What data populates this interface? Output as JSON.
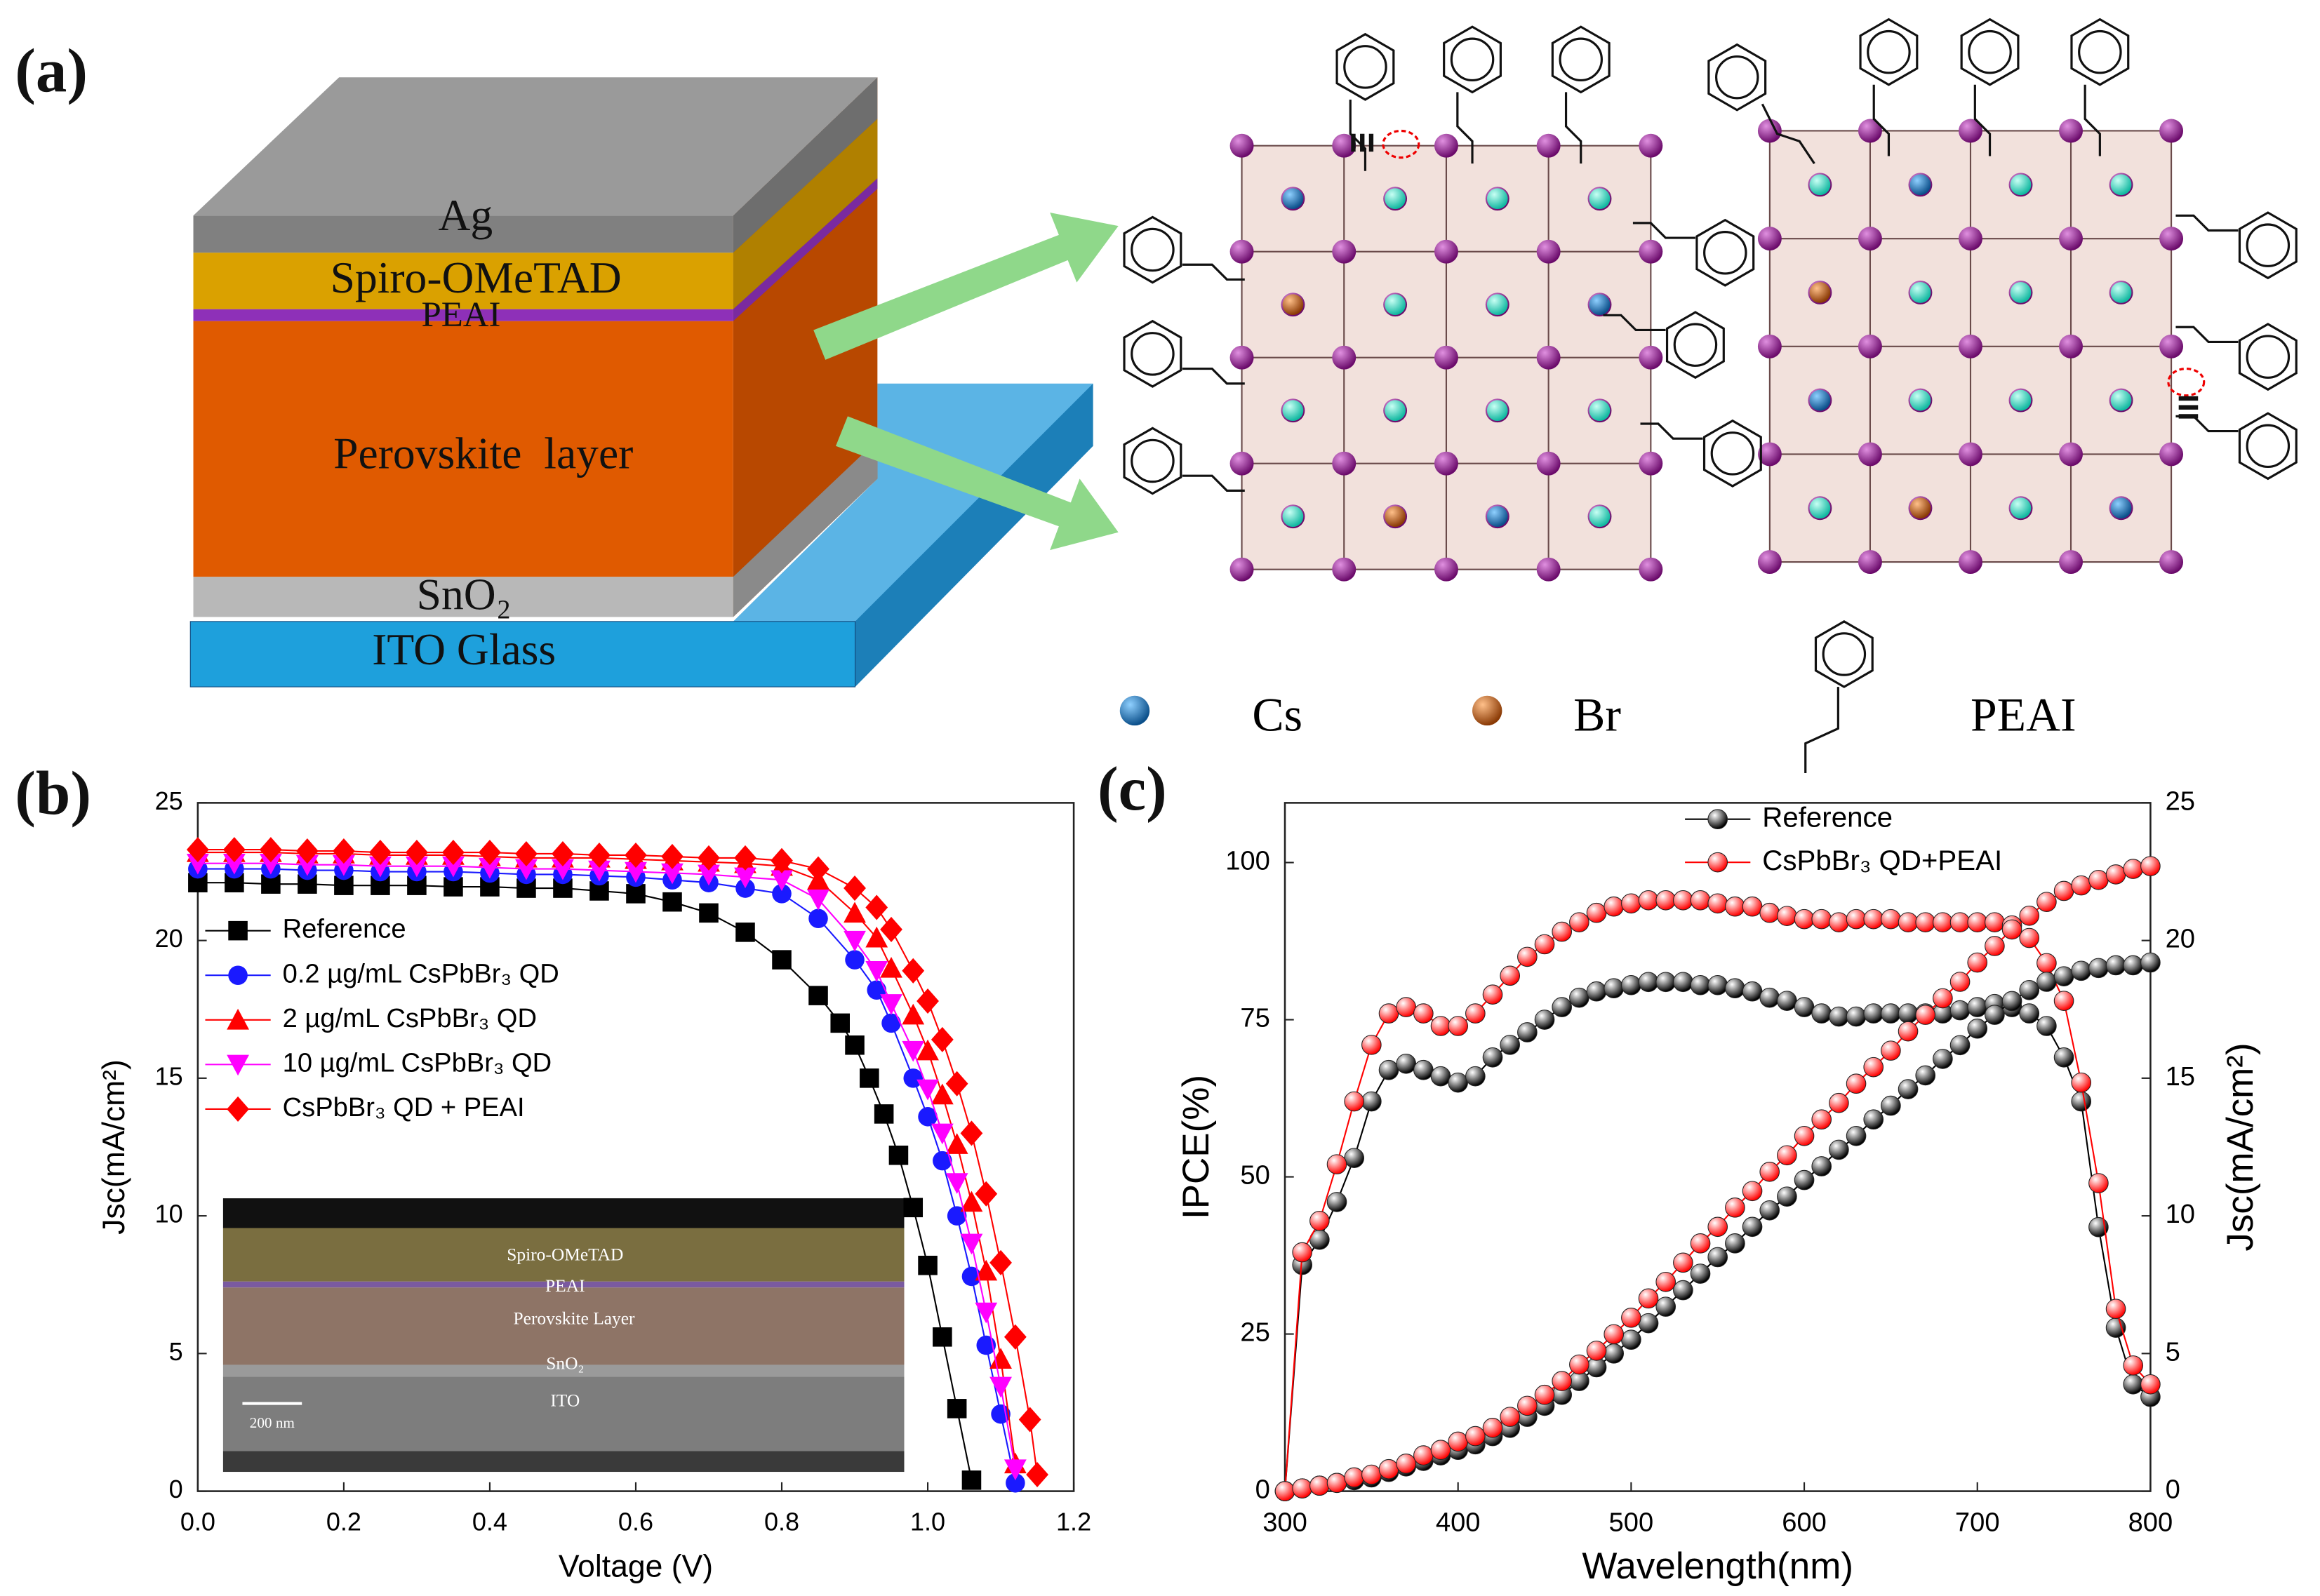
{
  "panel_labels": [
    "(a)",
    "(b)",
    "(c)"
  ],
  "device_layers": {
    "ag": "Ag",
    "spiro": "Spiro-OMeTAD",
    "peai": "PEAI",
    "perovskite": "Perovskite  layer",
    "sno2": "SnO₂",
    "ito": "ITO Glass"
  },
  "crystal_legend": {
    "cs": "Cs",
    "br": "Br",
    "peai": "PEAI"
  },
  "chart_data": [
    {
      "type": "line",
      "x_label": "Voltage (V)",
      "y_label": "Jsc(mA/cm²)",
      "xlim": [
        0,
        1.2
      ],
      "xticks": [
        {
          "value": 0,
          "label": "0.0"
        },
        0.2,
        0.4,
        0.6,
        0.8,
        {
          "value": 1,
          "label": "1.0"
        },
        1.2
      ],
      "ylim": [
        0,
        25
      ],
      "yticks": [
        0,
        5,
        10,
        15,
        20,
        25
      ],
      "inset_labels": [
        "Spiro-OMeTAD",
        "PEAI",
        "Perovskite Layer",
        "SnO₂",
        "ITO",
        "200 nm"
      ],
      "series": [
        {
          "name": "Reference",
          "color": "#000000",
          "marker": "square",
          "x": [
            0,
            0.05,
            0.1,
            0.15,
            0.2,
            0.25,
            0.3,
            0.35,
            0.4,
            0.45,
            0.5,
            0.55,
            0.6,
            0.65,
            0.7,
            0.75,
            0.8,
            0.85,
            0.88,
            0.9,
            0.92,
            0.94,
            0.96,
            0.98,
            1.0,
            1.02,
            1.04,
            1.06
          ],
          "values": [
            22.1,
            22.1,
            22.05,
            22.05,
            22.0,
            22.0,
            22.0,
            21.95,
            21.95,
            21.9,
            21.9,
            21.8,
            21.7,
            21.4,
            21.0,
            20.3,
            19.3,
            18.0,
            17.0,
            16.2,
            15.0,
            13.7,
            12.2,
            10.3,
            8.2,
            5.6,
            3.0,
            0.4
          ]
        },
        {
          "name": "0.2 µg/mL CsPbBr₃ QD",
          "color": "#1a1aff",
          "marker": "circle",
          "x": [
            0,
            0.05,
            0.1,
            0.15,
            0.2,
            0.25,
            0.3,
            0.35,
            0.4,
            0.45,
            0.5,
            0.55,
            0.6,
            0.65,
            0.7,
            0.75,
            0.8,
            0.85,
            0.9,
            0.93,
            0.95,
            0.98,
            1.0,
            1.02,
            1.04,
            1.06,
            1.08,
            1.1,
            1.12
          ],
          "values": [
            22.6,
            22.6,
            22.6,
            22.55,
            22.55,
            22.5,
            22.5,
            22.5,
            22.45,
            22.4,
            22.4,
            22.35,
            22.3,
            22.2,
            22.1,
            21.9,
            21.7,
            20.8,
            19.3,
            18.2,
            17.0,
            15.0,
            13.6,
            12.0,
            10.0,
            7.8,
            5.3,
            2.8,
            0.3
          ]
        },
        {
          "name": "2 µg/mL CsPbBr₃ QD",
          "color": "#ff0000",
          "marker": "triangle",
          "x": [
            0,
            0.05,
            0.1,
            0.15,
            0.2,
            0.25,
            0.3,
            0.35,
            0.4,
            0.45,
            0.5,
            0.55,
            0.6,
            0.65,
            0.7,
            0.75,
            0.8,
            0.85,
            0.9,
            0.93,
            0.95,
            0.98,
            1.0,
            1.02,
            1.04,
            1.06,
            1.08,
            1.1,
            1.12
          ],
          "values": [
            23.2,
            23.2,
            23.2,
            23.15,
            23.15,
            23.1,
            23.1,
            23.1,
            23.05,
            23.0,
            23.0,
            23.0,
            22.95,
            22.9,
            22.85,
            22.8,
            22.7,
            22.2,
            21.0,
            20.1,
            19.0,
            17.3,
            16.0,
            14.4,
            12.6,
            10.5,
            8.0,
            4.8,
            1.0
          ]
        },
        {
          "name": "10 µg/mL CsPbBr₃ QD",
          "color": "#ff00ff",
          "marker": "tridown",
          "x": [
            0,
            0.05,
            0.1,
            0.15,
            0.2,
            0.25,
            0.3,
            0.35,
            0.4,
            0.45,
            0.5,
            0.55,
            0.6,
            0.65,
            0.7,
            0.75,
            0.8,
            0.85,
            0.9,
            0.93,
            0.95,
            0.98,
            1.0,
            1.02,
            1.04,
            1.06,
            1.08,
            1.1,
            1.12
          ],
          "values": [
            22.8,
            22.8,
            22.8,
            22.75,
            22.75,
            22.7,
            22.7,
            22.7,
            22.65,
            22.6,
            22.6,
            22.55,
            22.5,
            22.45,
            22.4,
            22.3,
            22.2,
            21.5,
            20.0,
            18.9,
            17.7,
            16.0,
            14.6,
            13.0,
            11.2,
            9.0,
            6.5,
            3.8,
            0.8
          ]
        },
        {
          "name": "CsPbBr₃ QD + PEAI",
          "color": "#ff0000",
          "marker": "diamond",
          "x": [
            0,
            0.05,
            0.1,
            0.15,
            0.2,
            0.25,
            0.3,
            0.35,
            0.4,
            0.45,
            0.5,
            0.55,
            0.6,
            0.65,
            0.7,
            0.75,
            0.8,
            0.85,
            0.9,
            0.93,
            0.95,
            0.98,
            1.0,
            1.02,
            1.04,
            1.06,
            1.08,
            1.1,
            1.12,
            1.14,
            1.15
          ],
          "values": [
            23.3,
            23.3,
            23.3,
            23.25,
            23.25,
            23.2,
            23.2,
            23.2,
            23.2,
            23.15,
            23.15,
            23.1,
            23.1,
            23.05,
            23.0,
            23.0,
            22.9,
            22.6,
            21.9,
            21.2,
            20.4,
            18.9,
            17.8,
            16.4,
            14.8,
            13.0,
            10.8,
            8.3,
            5.6,
            2.6,
            0.6
          ]
        }
      ]
    },
    {
      "type": "line",
      "x_label": "Wavelength(nm)",
      "y_label": "IPCE(%)",
      "y2_label": "Jsc(mA/cm²)",
      "xlim": [
        300,
        800
      ],
      "xticks": [
        300,
        400,
        500,
        600,
        700,
        800
      ],
      "ylim": [
        0,
        109.5
      ],
      "yticks": [
        0,
        25,
        50,
        75,
        100
      ],
      "y2lim": [
        0,
        25
      ],
      "y2ticks": [
        0,
        5,
        10,
        15,
        20,
        25
      ],
      "x": [
        300,
        310,
        320,
        330,
        340,
        350,
        360,
        370,
        380,
        390,
        400,
        410,
        420,
        430,
        440,
        450,
        460,
        470,
        480,
        490,
        500,
        510,
        520,
        530,
        540,
        550,
        560,
        570,
        580,
        590,
        600,
        610,
        620,
        630,
        640,
        650,
        660,
        670,
        680,
        690,
        700,
        710,
        720,
        730,
        740,
        750,
        760,
        770,
        780,
        790,
        800
      ],
      "series": [
        {
          "name": "Reference",
          "color": "#000000",
          "values": [
            0,
            36,
            40,
            46,
            53,
            62,
            67,
            68,
            67,
            66,
            65,
            66,
            69,
            71,
            73,
            75,
            77,
            78.5,
            79.5,
            80,
            80.5,
            81,
            81,
            81,
            80.5,
            80.5,
            80,
            79.5,
            78.5,
            78,
            77,
            76,
            75.5,
            75.5,
            76,
            76,
            76,
            76,
            76,
            76.5,
            77,
            77.5,
            77,
            76,
            74,
            69,
            62,
            42,
            26,
            17,
            15
          ]
        },
        {
          "name": "CsPbBr₃ QD+PEAI",
          "color": "#ff0000",
          "values": [
            0,
            38,
            43,
            52,
            62,
            71,
            76,
            77,
            76,
            74,
            74,
            76,
            79,
            82,
            85,
            87,
            89,
            90.5,
            92,
            93,
            93.5,
            94,
            94,
            94,
            94,
            93.5,
            93,
            93,
            92,
            91.5,
            91,
            91,
            90.5,
            91,
            91,
            91,
            90.5,
            90.5,
            90.5,
            90.5,
            90.5,
            90.5,
            90,
            88,
            84,
            78,
            65,
            49,
            29,
            20,
            17
          ]
        },
        {
          "color": "#000000",
          "axis": "y2",
          "values": [
            0,
            0.1,
            0.2,
            0.3,
            0.4,
            0.5,
            0.7,
            0.9,
            1.1,
            1.3,
            1.5,
            1.7,
            2.0,
            2.3,
            2.7,
            3.1,
            3.5,
            4.0,
            4.5,
            5.0,
            5.5,
            6.1,
            6.7,
            7.3,
            7.9,
            8.5,
            9.0,
            9.6,
            10.2,
            10.7,
            11.3,
            11.8,
            12.4,
            12.9,
            13.5,
            14.0,
            14.6,
            15.1,
            15.7,
            16.2,
            16.8,
            17.3,
            17.8,
            18.2,
            18.5,
            18.7,
            18.9,
            19.0,
            19.1,
            19.1,
            19.2
          ]
        },
        {
          "color": "#ff0000",
          "axis": "y2",
          "values": [
            0,
            0.1,
            0.2,
            0.3,
            0.5,
            0.6,
            0.8,
            1.0,
            1.3,
            1.5,
            1.8,
            2.0,
            2.3,
            2.7,
            3.1,
            3.5,
            4.0,
            4.6,
            5.1,
            5.7,
            6.3,
            7.0,
            7.6,
            8.3,
            9.0,
            9.6,
            10.3,
            10.9,
            11.6,
            12.2,
            12.9,
            13.5,
            14.1,
            14.8,
            15.4,
            16.0,
            16.7,
            17.3,
            17.9,
            18.5,
            19.2,
            19.8,
            20.4,
            20.9,
            21.4,
            21.8,
            22.0,
            22.2,
            22.4,
            22.6,
            22.7
          ]
        }
      ]
    }
  ]
}
